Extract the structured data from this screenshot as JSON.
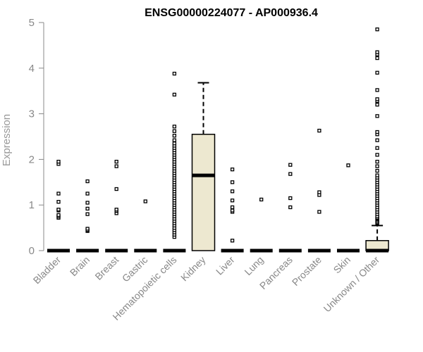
{
  "chart_data": {
    "type": "box",
    "title": "ENSG00000224077 - AP000936.4",
    "ylabel": "Expression",
    "xlabel": "",
    "ylim": [
      0,
      5
    ],
    "yticks": [
      "0",
      "1",
      "2",
      "3",
      "4",
      "5"
    ],
    "box_fill": "#ede8d0",
    "categories": [
      "Bladder",
      "Brain",
      "Breast",
      "Gastric",
      "Hematopoietic cells",
      "Kidney",
      "Liver",
      "Lung",
      "Pancreas",
      "Prostate",
      "Skin",
      "Unknown / Other"
    ],
    "boxes": [
      {
        "q1": 0,
        "median": 0,
        "q3": 0,
        "whisker_low": 0,
        "whisker_high": 0,
        "outliers": [
          0.72,
          0.75,
          0.78,
          0.88,
          0.9,
          1.07,
          1.25,
          1.9,
          1.95
        ]
      },
      {
        "q1": 0,
        "median": 0,
        "q3": 0,
        "whisker_low": 0,
        "whisker_high": 0,
        "outliers": [
          0.43,
          0.45,
          0.48,
          0.8,
          0.92,
          1.05,
          1.25,
          1.52
        ]
      },
      {
        "q1": 0,
        "median": 0,
        "q3": 0,
        "whisker_low": 0,
        "whisker_high": 0,
        "outliers": [
          0.82,
          0.87,
          0.9,
          1.35,
          1.85,
          1.95
        ]
      },
      {
        "q1": 0,
        "median": 0,
        "q3": 0,
        "whisker_low": 0,
        "whisker_high": 0,
        "outliers": [
          1.08
        ]
      },
      {
        "q1": 0,
        "median": 0,
        "q3": 0,
        "whisker_low": 0,
        "whisker_high": 0,
        "outliers": [
          0.3,
          0.35,
          0.4,
          0.45,
          0.5,
          0.55,
          0.6,
          0.65,
          0.7,
          0.75,
          0.8,
          0.85,
          0.9,
          0.95,
          1.0,
          1.05,
          1.1,
          1.15,
          1.2,
          1.25,
          1.3,
          1.35,
          1.4,
          1.45,
          1.5,
          1.55,
          1.6,
          1.65,
          1.7,
          1.75,
          1.8,
          1.85,
          1.9,
          1.95,
          2.0,
          2.05,
          2.1,
          2.15,
          2.2,
          2.25,
          2.3,
          2.35,
          2.42,
          2.52,
          2.62,
          2.72,
          3.42,
          3.88
        ]
      },
      {
        "q1": 0,
        "median": 1.65,
        "q3": 2.55,
        "whisker_low": 0,
        "whisker_high": 3.68,
        "outliers": []
      },
      {
        "q1": 0,
        "median": 0,
        "q3": 0,
        "whisker_low": 0,
        "whisker_high": 0,
        "outliers": [
          0.22,
          0.85,
          0.88,
          0.95,
          1.1,
          1.3,
          1.5,
          1.78
        ]
      },
      {
        "q1": 0,
        "median": 0,
        "q3": 0,
        "whisker_low": 0,
        "whisker_high": 0,
        "outliers": [
          1.12
        ]
      },
      {
        "q1": 0,
        "median": 0,
        "q3": 0,
        "whisker_low": 0,
        "whisker_high": 0,
        "outliers": [
          0.95,
          1.15,
          1.68,
          1.88
        ]
      },
      {
        "q1": 0,
        "median": 0,
        "q3": 0,
        "whisker_low": 0,
        "whisker_high": 0,
        "outliers": [
          0.85,
          1.22,
          1.28,
          2.63
        ]
      },
      {
        "q1": 0,
        "median": 0,
        "q3": 0,
        "whisker_low": 0,
        "whisker_high": 0,
        "outliers": [
          1.87
        ]
      },
      {
        "q1": 0,
        "median": 0,
        "q3": 0.22,
        "whisker_low": 0,
        "whisker_high": 0.55,
        "outliers": [
          0.6,
          0.62,
          0.65,
          0.68,
          0.7,
          0.72,
          0.75,
          0.8,
          0.85,
          0.9,
          0.95,
          1.0,
          1.05,
          1.1,
          1.15,
          1.2,
          1.25,
          1.3,
          1.35,
          1.4,
          1.45,
          1.5,
          1.55,
          1.6,
          1.65,
          1.75,
          1.85,
          1.95,
          2.1,
          2.25,
          2.42,
          2.55,
          2.6,
          2.95,
          3.2,
          3.28,
          3.32,
          3.52,
          3.9,
          4.22,
          4.3,
          4.35,
          4.85
        ]
      }
    ]
  }
}
